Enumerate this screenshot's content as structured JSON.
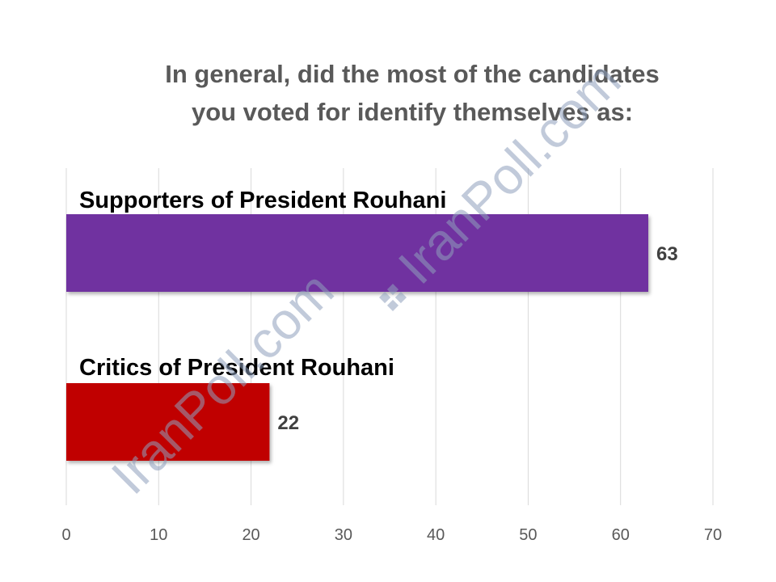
{
  "chart_data": {
    "type": "bar",
    "orientation": "horizontal",
    "title_lines": [
      "In general, did the most of the candidates",
      "you voted for identify themselves as:"
    ],
    "categories": [
      "Supporters of President Rouhani",
      "Critics of President Rouhani"
    ],
    "values": [
      63,
      22
    ],
    "value_labels": [
      "63",
      "22"
    ],
    "colors": [
      "#7030a0",
      "#c00000"
    ],
    "xlim": [
      0,
      70
    ],
    "x_ticks": [
      0,
      10,
      20,
      30,
      40,
      50,
      60,
      70
    ],
    "grid": true,
    "legend": "none"
  },
  "watermark": {
    "text": "IranPoll.com",
    "color": "#8fa0bd"
  }
}
